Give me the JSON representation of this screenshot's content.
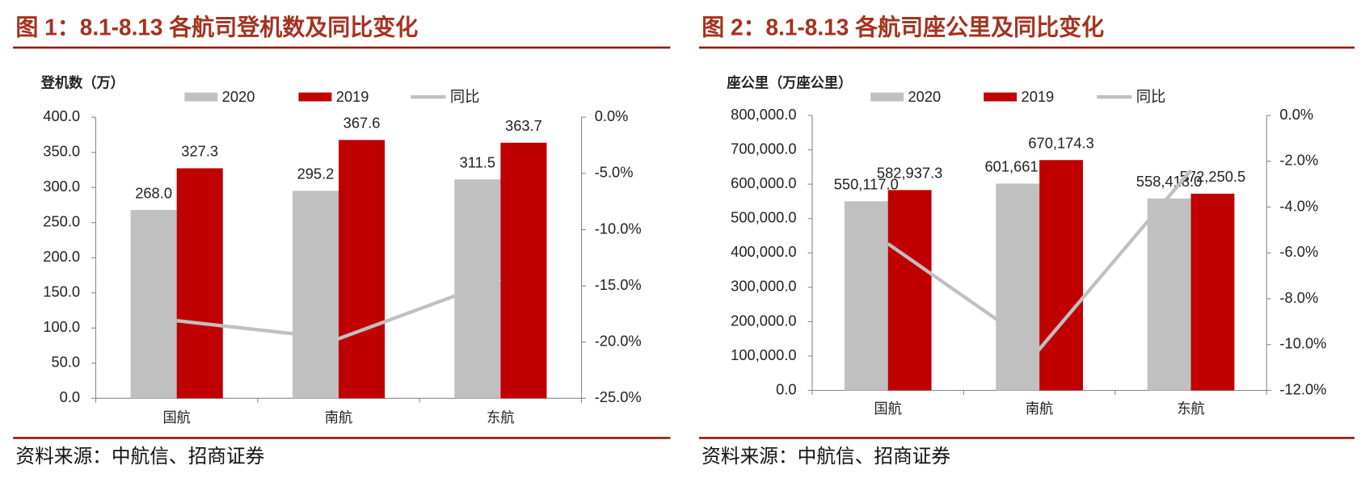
{
  "chart_data": [
    {
      "type": "bar",
      "title": "图 1：8.1-8.13 各航司登机数及同比变化",
      "y_label": "登机数（万）",
      "source": "资料来源：中航信、招商证券",
      "categories": [
        "国航",
        "南航",
        "东航"
      ],
      "series": [
        {
          "name": "2020",
          "color": "#c0c0c0",
          "values": [
            268.0,
            295.2,
            311.5
          ],
          "value_labels": [
            "268.0",
            "295.2",
            "311.5"
          ]
        },
        {
          "name": "2019",
          "color": "#c00000",
          "values": [
            327.3,
            367.6,
            363.7
          ],
          "value_labels": [
            "327.3",
            "367.6",
            "363.7"
          ]
        },
        {
          "name": "同比",
          "type": "line",
          "axis": "y2",
          "color": "#c0c0c0",
          "values": [
            -18.1,
            -19.7,
            -14.4
          ]
        }
      ],
      "ylim": [
        0,
        400
      ],
      "yticks": [
        {
          "value": 0,
          "label": "0.0"
        },
        {
          "value": 50,
          "label": "50.0"
        },
        {
          "value": 100,
          "label": "100.0"
        },
        {
          "value": 150,
          "label": "150.0"
        },
        {
          "value": 200,
          "label": "200.0"
        },
        {
          "value": 250,
          "label": "250.0"
        },
        {
          "value": 300,
          "label": "300.0"
        },
        {
          "value": 350,
          "label": "350.0"
        },
        {
          "value": 400,
          "label": "400.0"
        }
      ],
      "y2lim": [
        -25,
        0
      ],
      "y2ticks": [
        {
          "value": -25,
          "label": "-25.0%"
        },
        {
          "value": -20,
          "label": "-20.0%"
        },
        {
          "value": -15,
          "label": "-15.0%"
        },
        {
          "value": -10,
          "label": "-10.0%"
        },
        {
          "value": -5,
          "label": "-5.0%"
        },
        {
          "value": 0,
          "label": "0.0%"
        }
      ]
    },
    {
      "type": "bar",
      "title": "图 2：8.1-8.13 各航司座公里及同比变化",
      "y_label": "座公里（万座公里）",
      "source": "资料来源：中航信、招商证券",
      "categories": [
        "国航",
        "南航",
        "东航"
      ],
      "series": [
        {
          "name": "2020",
          "color": "#c0c0c0",
          "values": [
            550117.0,
            601661.2,
            558418.0
          ],
          "value_labels": [
            "550,117.0",
            "601,661.2",
            "558,418.0"
          ]
        },
        {
          "name": "2019",
          "color": "#c00000",
          "values": [
            582937.3,
            670174.3,
            572250.5
          ],
          "value_labels": [
            "582,937.3",
            "670,174.3",
            "572,250.5"
          ]
        },
        {
          "name": "同比",
          "type": "line",
          "axis": "y2",
          "color": "#c0c0c0",
          "values": [
            -5.6,
            -10.2,
            -2.4
          ]
        }
      ],
      "ylim": [
        0,
        800000
      ],
      "yticks": [
        {
          "value": 0,
          "label": "0.0"
        },
        {
          "value": 100000,
          "label": "100,000.0"
        },
        {
          "value": 200000,
          "label": "200,000.0"
        },
        {
          "value": 300000,
          "label": "300,000.0"
        },
        {
          "value": 400000,
          "label": "400,000.0"
        },
        {
          "value": 500000,
          "label": "500,000.0"
        },
        {
          "value": 600000,
          "label": "600,000.0"
        },
        {
          "value": 700000,
          "label": "700,000.0"
        },
        {
          "value": 800000,
          "label": "800,000.0"
        }
      ],
      "y2lim": [
        -12,
        0
      ],
      "y2ticks": [
        {
          "value": -12,
          "label": "-12.0%"
        },
        {
          "value": -10,
          "label": "-10.0%"
        },
        {
          "value": -8,
          "label": "-8.0%"
        },
        {
          "value": -6,
          "label": "-6.0%"
        },
        {
          "value": -4,
          "label": "-4.0%"
        },
        {
          "value": -2,
          "label": "-2.0%"
        },
        {
          "value": 0,
          "label": "0.0%"
        }
      ]
    }
  ]
}
